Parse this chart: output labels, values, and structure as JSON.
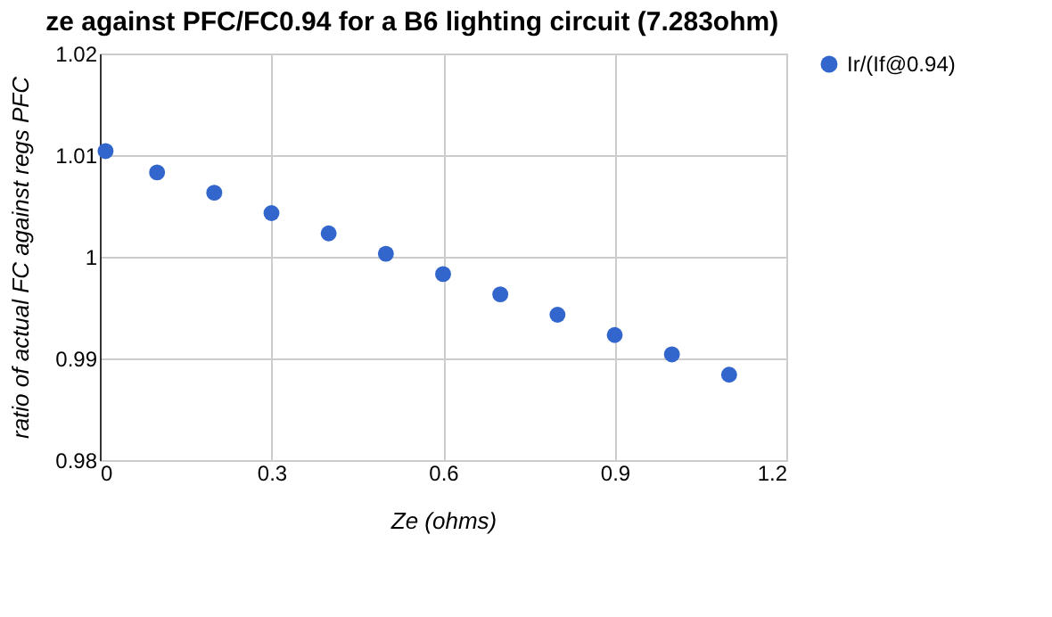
{
  "chart_data": {
    "type": "scatter",
    "title": "ze against PFC/FC0.94 for a B6 lighting circuit (7.283ohm)",
    "xlabel": "Ze (ohms)",
    "ylabel": "ratio of actual FC against regs PFC",
    "series": [
      {
        "name": "Ir/(If@0.94)",
        "color": "#3366cc",
        "x": [
          0.01,
          0.1,
          0.2,
          0.3,
          0.4,
          0.5,
          0.6,
          0.7,
          0.8,
          0.9,
          1.0,
          1.1
        ],
        "values": [
          1.0104,
          1.0083,
          1.0063,
          1.0043,
          1.0023,
          1.0003,
          0.9983,
          0.9963,
          0.9943,
          0.9923,
          0.9904,
          0.9884
        ]
      }
    ],
    "xlim": [
      0,
      1.2
    ],
    "xticks": [
      {
        "value": 0,
        "label": "0"
      },
      0.3,
      0.6,
      0.9,
      1.2
    ],
    "ylim": [
      0.98,
      1.02
    ],
    "yticks": [
      0.98,
      0.99,
      {
        "value": 1,
        "label": "1"
      },
      1.01,
      1.02
    ],
    "grid": true,
    "legend": "right",
    "marker": "circle"
  }
}
